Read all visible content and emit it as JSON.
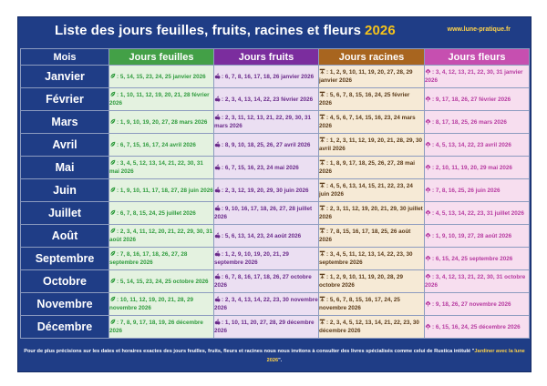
{
  "header": {
    "title": "Liste des jours feuilles, fruits, racines et fleurs",
    "year": "2026",
    "site": "www.lune-pratique.fr"
  },
  "columns": [
    "Mois",
    "Jours feuilles",
    "Jours fruits",
    "Jours racines",
    "Jours fleurs"
  ],
  "icons": {
    "leaf": "leaf-icon",
    "fruit": "fruit-icon",
    "root": "root-icon",
    "flower": "flower-icon"
  },
  "colors": {
    "frame": "#1f3d86",
    "leaf_header": "#43a047",
    "fruit_header": "#7b2d9e",
    "root_header": "#a8651f",
    "flower_header": "#c64fb0",
    "accent": "#f4c21b"
  },
  "rows": [
    {
      "month": "Janvier",
      "leaf": ": 5, 14, 15, 23, 24, 25 janvier 2026",
      "fruit": ": 6, 7, 8, 16, 17, 18, 26 janvier 2026",
      "root": ": 1, 2, 9, 10, 11, 19, 20, 27, 28, 29 janvier 2026",
      "flower": ": 3, 4, 12, 13, 21, 22, 30, 31 janvier 2026"
    },
    {
      "month": "Février",
      "leaf": ": 1, 10, 11, 12, 19, 20, 21, 28 février 2026",
      "fruit": ": 2, 3, 4, 13, 14, 22, 23 février 2026",
      "root": ": 5, 6, 7, 8, 15, 16, 24, 25 février 2026",
      "flower": ": 9, 17, 18, 26, 27 février 2026"
    },
    {
      "month": "Mars",
      "leaf": ": 1, 9, 10, 19, 20, 27, 28 mars 2026",
      "fruit": ": 2, 3, 11, 12, 13, 21, 22, 29, 30, 31 mars 2026",
      "root": ": 4, 5, 6, 7, 14, 15, 16, 23, 24 mars 2026",
      "flower": ": 8, 17, 18, 25, 26 mars 2026"
    },
    {
      "month": "Avril",
      "leaf": ": 6, 7, 15, 16, 17, 24 avril 2026",
      "fruit": ": 8, 9, 10, 18, 25, 26, 27 avril 2026",
      "root": ": 1, 2, 3, 11, 12, 19, 20, 21, 28, 29, 30 avril 2026",
      "flower": ": 4, 5, 13, 14, 22, 23 avril 2026"
    },
    {
      "month": "Mai",
      "leaf": ": 3, 4, 5, 12, 13, 14, 21, 22, 30, 31 mai 2026",
      "fruit": ": 6, 7, 15, 16, 23, 24 mai 2026",
      "root": ": 1, 8, 9, 17, 18, 25, 26, 27, 28 mai 2026",
      "flower": ": 2, 10, 11, 19, 20, 29 mai 2026"
    },
    {
      "month": "Juin",
      "leaf": ": 1, 9, 10, 11, 17, 18, 27, 28 juin 2026",
      "fruit": ": 2, 3, 12, 19, 20, 29, 30 juin 2026",
      "root": ": 4, 5, 6, 13, 14, 15, 21, 22, 23, 24 juin 2026",
      "flower": ": 7, 8, 16, 25, 26 juin 2026"
    },
    {
      "month": "Juillet",
      "leaf": ": 6, 7, 8, 15, 24, 25 juillet 2026",
      "fruit": ": 9, 10, 16, 17, 18, 26, 27, 28 juillet 2026",
      "root": ": 2, 3, 11, 12, 19, 20, 21, 29, 30 juillet 2026",
      "flower": ": 4, 5, 13, 14, 22, 23, 31 juillet 2026"
    },
    {
      "month": "Août",
      "leaf": ": 2, 3, 4, 11, 12, 20, 21, 22, 29, 30, 31 août 2026",
      "fruit": ": 5, 6, 13, 14, 23, 24 août 2026",
      "root": ": 7, 8, 15, 16, 17, 18, 25, 26 août 2026",
      "flower": ": 1, 9, 10, 19, 27, 28 août 2026"
    },
    {
      "month": "Septembre",
      "leaf": ": 7, 8, 16, 17, 18, 26, 27, 28 septembre 2026",
      "fruit": ": 1, 2, 9, 10, 19, 20, 21, 29 septembre 2026",
      "root": ": 3, 4, 5, 11, 12, 13, 14, 22, 23, 30 septembre 2026",
      "flower": ": 6, 15, 24, 25 septembre 2026"
    },
    {
      "month": "Octobre",
      "leaf": ": 5, 14, 15, 23, 24, 25 octobre 2026",
      "fruit": ": 6, 7, 8, 16, 17, 18, 26, 27 octobre 2026",
      "root": ": 1, 2, 9, 10, 11, 19, 20, 28, 29 octobre 2026",
      "flower": ": 3, 4, 12, 13, 21, 22, 30, 31 octobre 2026"
    },
    {
      "month": "Novembre",
      "leaf": ": 10, 11, 12, 19, 20, 21, 28, 29 novembre 2026",
      "fruit": ": 2, 3, 4, 13, 14, 22, 23, 30 novembre 2026",
      "root": ": 5, 6, 7, 8, 15, 16, 17, 24, 25 novembre 2026",
      "flower": ": 9, 18, 26, 27 novembre 2026"
    },
    {
      "month": "Décembre",
      "leaf": ": 7, 8, 9, 17, 18, 19, 26 décembre 2026",
      "fruit": ": 1, 10, 11, 20, 27, 28, 29 décembre 2026",
      "root": ": 2, 3, 4, 5, 12, 13, 14, 21, 22, 23, 30 décembre 2026",
      "flower": ": 6, 15, 16, 24, 25 décembre 2026"
    }
  ],
  "footer": {
    "text": "Pour de plus précisions sur les dates et horaires exactes des jours feuilles, fruits, fleurs et racines nous nous invitons à consulter des livres spécialisés comme celui de Rustica intitulé \"",
    "book": "Jardiner avec la lune 2026",
    "end": "\"."
  }
}
